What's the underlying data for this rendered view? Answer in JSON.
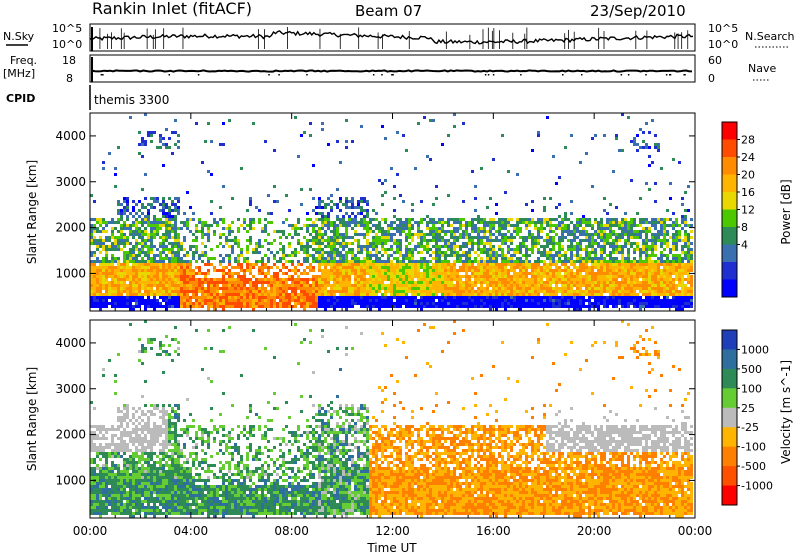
{
  "header": {
    "title": "Rankin Inlet (fitACF)",
    "beam": "Beam 07",
    "date": "23/Sep/2010"
  },
  "top_panels": {
    "nsky_label": "N.Sky",
    "nsky_ticks": [
      "10^5",
      "10^0"
    ],
    "nsearch_label": "N.Search",
    "nsearch_ticks": [
      "10^5",
      "10^0"
    ],
    "freq_label": "Freq.",
    "freq_unit": "[MHz]",
    "freq_ticks": [
      "18",
      "8"
    ],
    "nave_label": "Nave",
    "nave_ticks": [
      "60",
      "0"
    ],
    "cpid_label": "CPID",
    "cpid_value": "themis 3300"
  },
  "chart_data": [
    {
      "type": "heatmap",
      "panel": "power",
      "title": "",
      "ylabel": "Slant Range [km]",
      "xlabel": "",
      "x_ticks": [
        "00:00",
        "04:00",
        "08:00",
        "12:00",
        "16:00",
        "20:00",
        "00:00"
      ],
      "y_ticks": [
        1000,
        2000,
        3000,
        4000
      ],
      "ylim": [
        180,
        4500
      ],
      "xlim_hours": [
        0,
        24
      ],
      "colorbar": {
        "label": "Power [dB]",
        "ticks": [
          "28",
          "24",
          "20",
          "16",
          "12",
          "8",
          "4"
        ],
        "colors": [
          "#ff0000",
          "#ff4c00",
          "#ff8c00",
          "#ffb400",
          "#e8d800",
          "#4cc800",
          "#2e8b57",
          "#3a6fb0",
          "#2030d0",
          "#0000ff"
        ]
      }
    },
    {
      "type": "heatmap",
      "panel": "velocity",
      "title": "",
      "ylabel": "Slant Range [km]",
      "xlabel": "Time UT",
      "x_ticks": [
        "00:00",
        "04:00",
        "08:00",
        "12:00",
        "16:00",
        "20:00",
        "00:00"
      ],
      "y_ticks": [
        1000,
        2000,
        3000,
        4000
      ],
      "ylim": [
        180,
        4500
      ],
      "xlim_hours": [
        0,
        24
      ],
      "colorbar": {
        "label": "Velocity [m s^-1]",
        "ticks": [
          "1000",
          "500",
          "100",
          "25",
          "-25",
          "-100",
          "-500",
          "-1000"
        ],
        "colors": [
          "#1f3fb8",
          "#2f6fa0",
          "#2e8b57",
          "#66cc33",
          "#bbbbbb",
          "#ffb400",
          "#ff8000",
          "#ff5000",
          "#ff0000"
        ]
      }
    }
  ]
}
